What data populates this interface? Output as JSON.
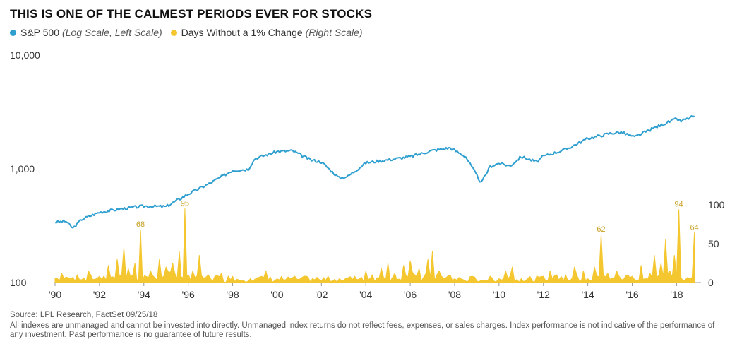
{
  "chart_data": {
    "type": "line",
    "title": "THIS IS ONE OF THE CALMEST PERIODS EVER FOR STOCKS",
    "series": [
      {
        "name": "S&P 500",
        "note": "(Log Scale, Left Scale)",
        "color": "#2f9fd0",
        "axis": "left",
        "scale": "log",
        "x": [
          1990.0,
          1990.5,
          1990.8,
          1991.2,
          1992.0,
          1993.0,
          1994.0,
          1995.0,
          1996.0,
          1997.0,
          1998.0,
          1998.7,
          1999.0,
          2000.0,
          2000.7,
          2001.5,
          2002.0,
          2002.8,
          2003.2,
          2004.0,
          2005.0,
          2006.0,
          2007.0,
          2007.8,
          2008.5,
          2009.2,
          2009.6,
          2010.0,
          2010.5,
          2011.0,
          2011.7,
          2012.0,
          2013.0,
          2014.0,
          2015.0,
          2015.5,
          2016.1,
          2017.0,
          2018.0,
          2018.2,
          2018.8
        ],
        "values": [
          340,
          345,
          300,
          360,
          415,
          445,
          470,
          465,
          600,
          750,
          970,
          990,
          1230,
          1420,
          1440,
          1200,
          1150,
          830,
          860,
          1130,
          1200,
          1280,
          1450,
          1530,
          1280,
          750,
          1050,
          1120,
          1060,
          1280,
          1150,
          1290,
          1480,
          1850,
          2050,
          2100,
          1900,
          2300,
          2750,
          2620,
          2920
        ]
      },
      {
        "name": "Days Without a 1% Change",
        "note": "(Right Scale)",
        "color": "#f4c730",
        "axis": "right",
        "x": [
          1990.0,
          1990.3,
          1990.6,
          1991.0,
          1991.5,
          1992.0,
          1992.4,
          1992.8,
          1993.1,
          1993.3,
          1993.6,
          1993.85,
          1994.3,
          1994.7,
          1995.0,
          1995.3,
          1995.6,
          1995.85,
          1996.2,
          1996.5,
          1996.9,
          1997.5,
          1998.0,
          1998.8,
          1999.5,
          2000.3,
          2001.0,
          2002.0,
          2003.0,
          2003.5,
          2004.0,
          2004.3,
          2004.7,
          2005.0,
          2005.3,
          2005.7,
          2006.0,
          2006.4,
          2006.8,
          2007.0,
          2007.3,
          2007.8,
          2008.5,
          2009.0,
          2009.5,
          2010.0,
          2010.3,
          2010.6,
          2011.0,
          2011.5,
          2012.0,
          2012.3,
          2012.6,
          2013.0,
          2013.4,
          2013.8,
          2014.0,
          2014.3,
          2014.6,
          2014.9,
          2015.3,
          2015.8,
          2016.0,
          2016.4,
          2016.8,
          2017.0,
          2017.3,
          2017.5,
          2017.7,
          2017.9,
          2018.1,
          2018.3,
          2018.6,
          2018.8
        ],
        "values": [
          5,
          12,
          6,
          10,
          15,
          8,
          22,
          30,
          45,
          18,
          25,
          68,
          15,
          30,
          20,
          25,
          40,
          95,
          15,
          35,
          10,
          12,
          8,
          5,
          15,
          3,
          4,
          2,
          3,
          8,
          15,
          10,
          18,
          25,
          12,
          22,
          28,
          18,
          30,
          40,
          15,
          10,
          2,
          2,
          3,
          5,
          15,
          20,
          5,
          2,
          8,
          15,
          10,
          10,
          20,
          15,
          5,
          20,
          62,
          12,
          15,
          10,
          8,
          22,
          12,
          35,
          25,
          55,
          15,
          35,
          94,
          2,
          5,
          64
        ]
      }
    ],
    "annotations": [
      {
        "x": 1993.85,
        "value": 68,
        "label": "68"
      },
      {
        "x": 1995.85,
        "value": 95,
        "label": "95"
      },
      {
        "x": 2014.6,
        "value": 62,
        "label": "62"
      },
      {
        "x": 2018.1,
        "value": 94,
        "label": "94"
      },
      {
        "x": 2018.8,
        "value": 64,
        "label": "64"
      }
    ],
    "x_ticks": [
      "'90",
      "'92",
      "'94",
      "'96",
      "'98",
      "'00",
      "'02",
      "'04",
      "'06",
      "'08",
      "'10",
      "'12",
      "'14",
      "'16",
      "'18"
    ],
    "x_tick_values": [
      1990,
      1992,
      1994,
      1996,
      1998,
      2000,
      2002,
      2004,
      2006,
      2008,
      2010,
      2012,
      2014,
      2016,
      2018
    ],
    "xlim": [
      1990,
      2019.1
    ],
    "y_left": {
      "scale": "log",
      "lim": [
        100,
        10000
      ],
      "ticks": [
        100,
        1000,
        10000
      ],
      "tick_labels": [
        "100",
        "1,000",
        "10,000"
      ]
    },
    "y_right": {
      "lim": [
        0,
        100
      ],
      "ticks": [
        0,
        50,
        100
      ],
      "tick_labels": [
        "0",
        "50",
        "100"
      ]
    },
    "grid": false,
    "legend": "top-left"
  },
  "legend_items": [
    {
      "label": "S&P 500",
      "note": "(Log Scale, Left Scale)"
    },
    {
      "label": "Days Without a 1% Change",
      "note": "(Right Scale)"
    }
  ],
  "source": "Source: LPL Research, FactSet  09/25/18",
  "disclaimer": "All indexes are unmanaged and cannot be invested into directly. Unmanaged index returns do not reflect fees, expenses, or sales charges. Index performance is not indicative of the performance of any investment. Past performance is no guarantee of future results.",
  "colors": {
    "sp500": "#2f9fd0",
    "days": "#f4c730",
    "annotation": "#c9a227"
  }
}
